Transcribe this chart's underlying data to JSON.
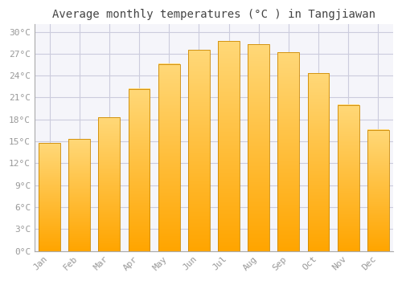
{
  "title": "Average monthly temperatures (°C ) in Tangjiawan",
  "months": [
    "Jan",
    "Feb",
    "Mar",
    "Apr",
    "May",
    "Jun",
    "Jul",
    "Aug",
    "Sep",
    "Oct",
    "Nov",
    "Dec"
  ],
  "values": [
    14.8,
    15.3,
    18.3,
    22.2,
    25.6,
    27.5,
    28.7,
    28.3,
    27.2,
    24.3,
    20.0,
    16.6
  ],
  "bar_color_bottom": "#FFA500",
  "bar_color_top": "#FFD878",
  "bar_edge_color": "#CC8800",
  "ylim": [
    0,
    31
  ],
  "yticks": [
    0,
    3,
    6,
    9,
    12,
    15,
    18,
    21,
    24,
    27,
    30
  ],
  "bg_color": "#FFFFFF",
  "plot_bg_color": "#F5F5FA",
  "grid_color": "#CCCCDD",
  "title_fontsize": 10,
  "tick_fontsize": 8,
  "font_family": "monospace",
  "tick_color": "#999999",
  "title_color": "#444444"
}
